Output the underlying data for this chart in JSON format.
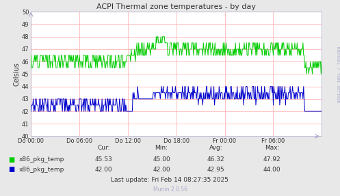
{
  "title": "ACPI Thermal zone temperatures - by day",
  "ylabel": "Celsius",
  "ylim": [
    40,
    50
  ],
  "yticks": [
    40,
    41,
    42,
    43,
    44,
    45,
    46,
    47,
    48,
    49,
    50
  ],
  "xlabels": [
    "Do 00:00",
    "Do 06:00",
    "Do 12:00",
    "Do 18:00",
    "Fr 00:00",
    "Fr 06:00"
  ],
  "bg_color": "#e8e8e8",
  "plot_bg_color": "#ffffff",
  "grid_color": "#ffaaaa",
  "green_color": "#00cc00",
  "blue_color": "#0000cc",
  "title_color": "#333333",
  "legend_labels": [
    "x86_pkg_temp",
    "x86_pkg_temp"
  ],
  "stats_headers": [
    "Cur:",
    "Min:",
    "Avg:",
    "Max:"
  ],
  "green_stats": [
    "45.53",
    "45.00",
    "46.32",
    "47.92"
  ],
  "blue_stats": [
    "42.00",
    "42.00",
    "42.95",
    "44.00"
  ],
  "last_update": "Last update: Fri Feb 14 08:27:35 2025",
  "munin_version": "Munin 2.0.56",
  "rrdtool_label": "RRDTOOL / TOBI OETIKER",
  "n_points": 500
}
